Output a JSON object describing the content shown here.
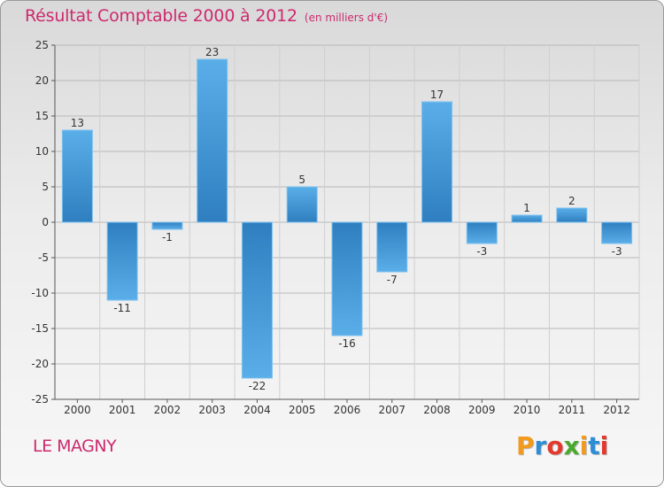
{
  "title": "Résultat Comptable 2000 à 2012",
  "subtitle": "(en milliers d'€)",
  "commune": "LE MAGNY",
  "logo": {
    "letters": [
      "P",
      "r",
      "o",
      "x",
      "i",
      "t",
      "i"
    ],
    "colors": [
      "#f29a1e",
      "#2d8ed6",
      "#e23a2f",
      "#4aa82c",
      "#f29a1e",
      "#2d8ed6",
      "#e23a2f"
    ]
  },
  "colors": {
    "bar_light": "#5aaee8",
    "bar_dark": "#2f7fc0",
    "title": "#cc2a6e"
  },
  "chart_data": {
    "type": "bar",
    "title": "Résultat Comptable 2000 à 2012",
    "xlabel": "",
    "ylabel": "",
    "ylim": [
      -25,
      25
    ],
    "yticks": [
      25,
      20,
      15,
      10,
      5,
      0,
      -5,
      -10,
      -15,
      -20,
      -25
    ],
    "grid": true,
    "categories": [
      "2000",
      "2001",
      "2002",
      "2003",
      "2004",
      "2005",
      "2006",
      "2007",
      "2008",
      "2009",
      "2010",
      "2011",
      "2012"
    ],
    "values": [
      13,
      -11,
      -1,
      23,
      -22,
      5,
      -16,
      -7,
      17,
      -3,
      1,
      2,
      -3
    ]
  }
}
